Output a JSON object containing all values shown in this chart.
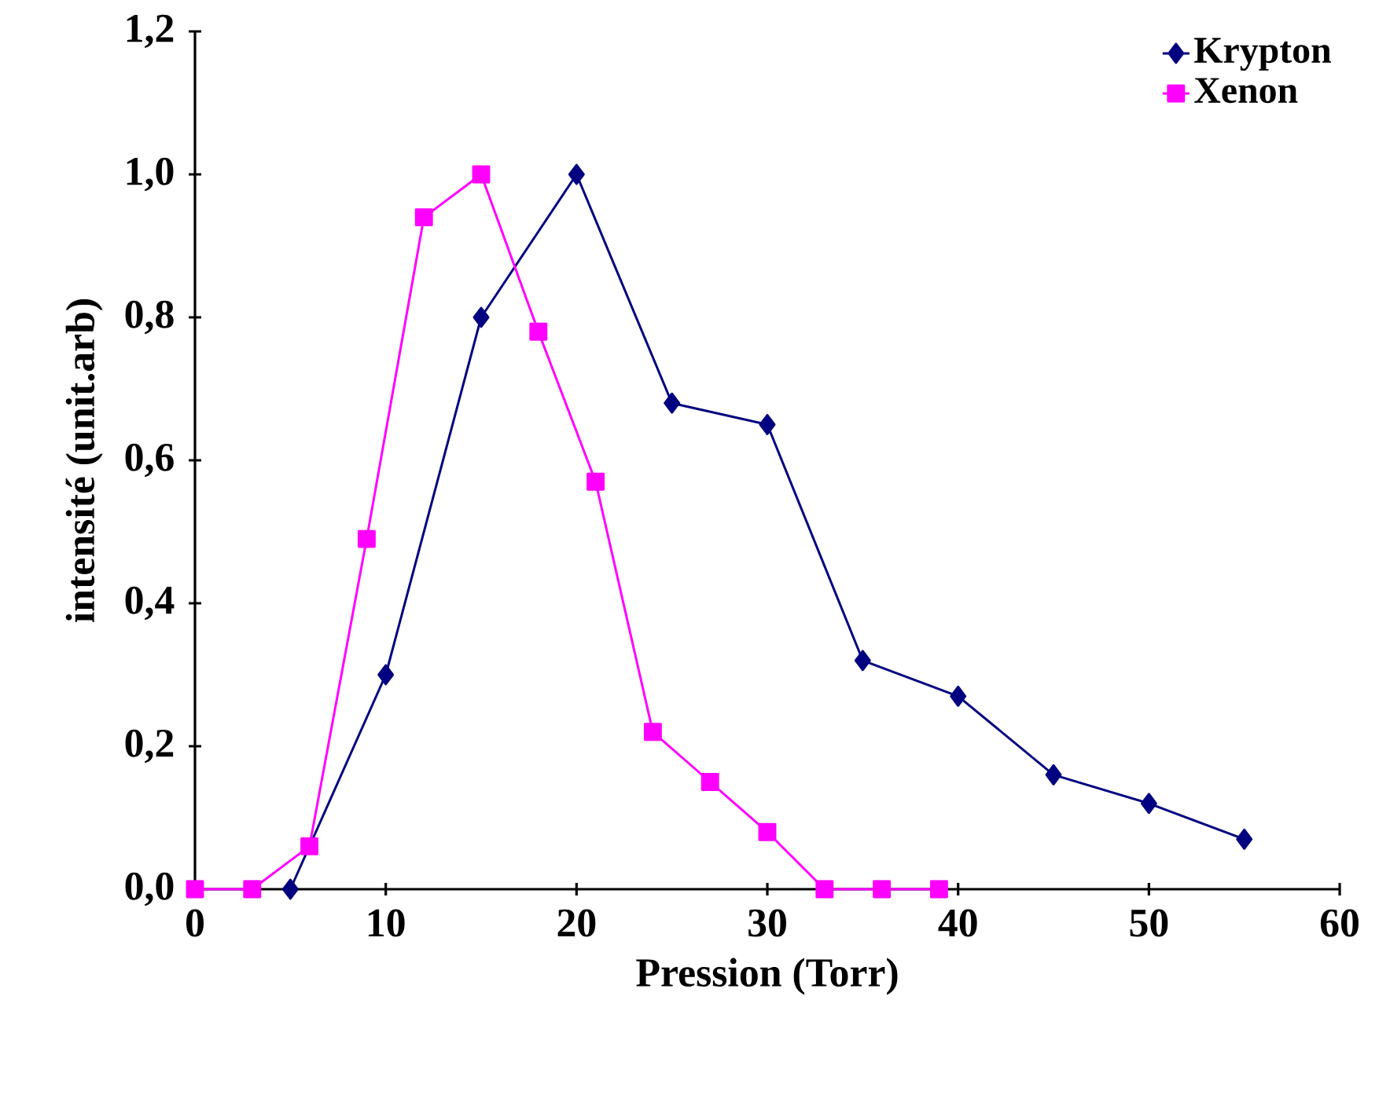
{
  "chart_data": {
    "type": "line",
    "xlabel": "Pression (Torr)",
    "ylabel": "intensité (unit.arb)",
    "xlim": [
      0,
      60
    ],
    "ylim": [
      0,
      1.2
    ],
    "xticks": [
      0,
      10,
      20,
      30,
      40,
      50,
      60
    ],
    "yticks": [
      {
        "value": 0,
        "label": "0,0"
      },
      {
        "value": 0.2,
        "label": "0,2"
      },
      {
        "value": 0.4,
        "label": "0,4"
      },
      {
        "value": 0.6,
        "label": "0,6"
      },
      {
        "value": 0.8,
        "label": "0,8"
      },
      {
        "value": 1.0,
        "label": "1,0"
      },
      {
        "value": 1.2,
        "label": "1,2"
      }
    ],
    "grid": false,
    "legend": "top right",
    "line_style": "solid",
    "series": [
      {
        "name": "Krypton",
        "color": "#000080",
        "marker": "diamond",
        "x": [
          5,
          10,
          15,
          20,
          25,
          30,
          35,
          40,
          45,
          50,
          55
        ],
        "values": [
          0.0,
          0.3,
          0.8,
          1.0,
          0.68,
          0.65,
          0.32,
          0.27,
          0.16,
          0.12,
          0.07
        ]
      },
      {
        "name": "Xenon",
        "color": "#ff00ff",
        "marker": "square",
        "x": [
          0,
          3,
          6,
          9,
          12,
          15,
          18,
          21,
          24,
          27,
          30,
          33,
          36,
          39
        ],
        "values": [
          0.0,
          0.0,
          0.06,
          0.49,
          0.94,
          1.0,
          0.78,
          0.57,
          0.22,
          0.15,
          0.08,
          0.0,
          0.0,
          0.0
        ]
      }
    ]
  }
}
